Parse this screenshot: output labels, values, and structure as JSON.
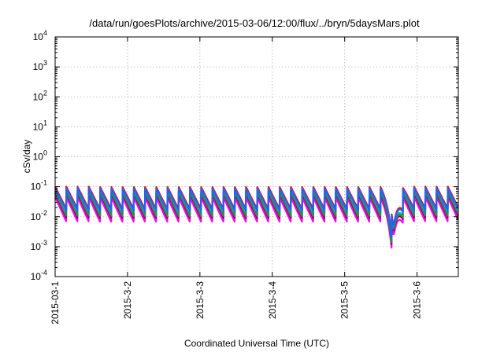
{
  "chart_data": {
    "type": "line",
    "title": "/data/run/goesPlots/archive/2015-03-06/12:00/flux/../bryn/5daysMars.plot",
    "xlabel": "Coordinated Universal Time (UTC)",
    "ylabel": "cSv/day",
    "yscale": "log",
    "ylim": [
      0.0001,
      10000
    ],
    "xlim": [
      0,
      5.57
    ],
    "grid": true,
    "legend": "none",
    "y_ticks": [
      {
        "base": "10",
        "exp": "-4",
        "value": 0.0001
      },
      {
        "base": "10",
        "exp": "-3",
        "value": 0.001
      },
      {
        "base": "10",
        "exp": "-2",
        "value": 0.01
      },
      {
        "base": "10",
        "exp": "-1",
        "value": 0.1
      },
      {
        "base": "10",
        "exp": "0",
        "value": 1
      },
      {
        "base": "10",
        "exp": "1",
        "value": 10
      },
      {
        "base": "10",
        "exp": "2",
        "value": 100
      },
      {
        "base": "10",
        "exp": "3",
        "value": 1000
      },
      {
        "base": "10",
        "exp": "4",
        "value": 10000
      }
    ],
    "x_ticks": [
      {
        "label": "2015-03-1",
        "value": 0
      },
      {
        "label": "2015-3-2",
        "value": 1
      },
      {
        "label": "2015-3-3",
        "value": 2
      },
      {
        "label": "2015-3-4",
        "value": 3
      },
      {
        "label": "2015-3-5",
        "value": 4
      },
      {
        "label": "2015-3-6",
        "value": 5
      }
    ],
    "orbit_period_days": 0.155,
    "dip": {
      "center_day": 4.67,
      "width_days": 0.09,
      "depth_factor": 0.075
    },
    "series": [
      {
        "color": "#ff00ff",
        "peak": 0.045,
        "trough": 0.0068
      },
      {
        "color": "#8b0a50",
        "peak": 0.06,
        "trough": 0.009
      },
      {
        "color": "#00c8c8",
        "peak": 0.075,
        "trough": 0.012
      },
      {
        "color": "#2e8b57",
        "peak": 0.068,
        "trough": 0.0105
      },
      {
        "color": "#ff0000",
        "peak": 0.1,
        "trough": 0.018
      },
      {
        "color": "#1e64ff",
        "peak": 0.09,
        "trough": 0.016
      }
    ]
  }
}
